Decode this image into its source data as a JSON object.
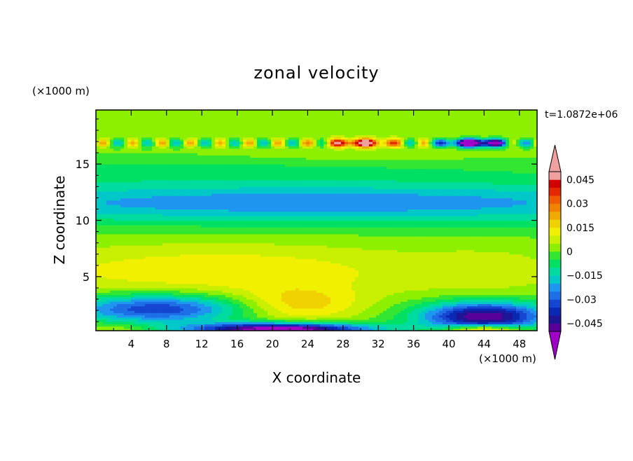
{
  "chart_data": {
    "type": "heatmap",
    "title": "zonal velocity",
    "xlabel": "X coordinate",
    "ylabel": "Z coordinate",
    "x_unit": "(×1000 m)",
    "y_unit": "(×1000 m)",
    "time_label": "t=1.0872e+06",
    "xlim": [
      0,
      50
    ],
    "ylim": [
      0.2,
      19.8
    ],
    "x_ticks": [
      4,
      8,
      12,
      16,
      20,
      24,
      28,
      32,
      36,
      40,
      44,
      48
    ],
    "y_ticks": [
      5,
      10,
      15
    ],
    "colorbar": {
      "levels": [
        -0.05,
        -0.045,
        -0.04,
        -0.035,
        -0.03,
        -0.025,
        -0.02,
        -0.015,
        -0.01,
        -0.005,
        0,
        0.005,
        0.01,
        0.015,
        0.02,
        0.025,
        0.03,
        0.035,
        0.04,
        0.045,
        0.05
      ],
      "colors": [
        "#a000c8",
        "#5a009a",
        "#1e1496",
        "#0a28b4",
        "#1446d2",
        "#1e6ee6",
        "#1e96f0",
        "#00c8c8",
        "#00dca0",
        "#00e164",
        "#32e632",
        "#8cf000",
        "#c8f000",
        "#f0f000",
        "#f0d200",
        "#f0aa00",
        "#f08200",
        "#f05a00",
        "#e62800",
        "#d20000",
        "#f0a0a0"
      ],
      "labels": [
        "0.045",
        "0.03",
        "0.015",
        "0",
        "−0.015",
        "−0.03",
        "−0.045"
      ],
      "label_values": [
        0.045,
        0.03,
        0.015,
        0,
        -0.015,
        -0.03,
        -0.045
      ]
    }
  }
}
